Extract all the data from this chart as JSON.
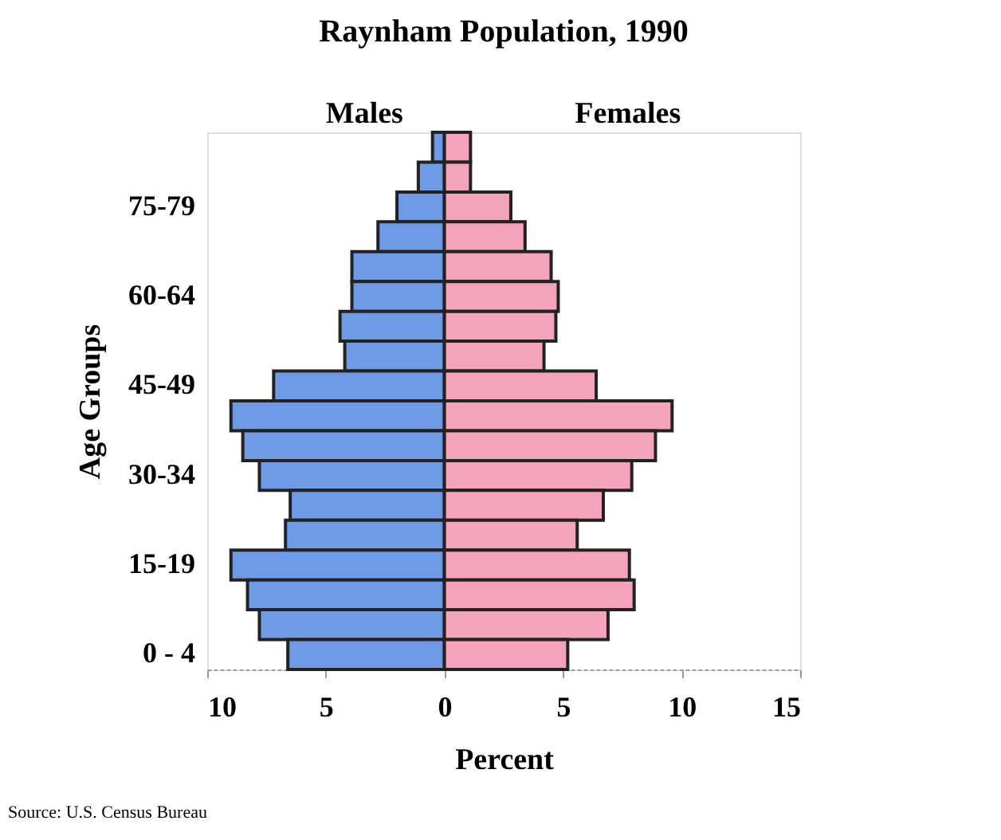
{
  "chart_data": {
    "type": "bar",
    "orientation": "horizontal",
    "stacked": true,
    "title": "Raynham Population, 1990",
    "xlabel": "Percent",
    "ylabel": "Age Groups",
    "categories": [
      null,
      null,
      "75-79",
      null,
      null,
      "60-64",
      null,
      null,
      "45-49",
      null,
      null,
      "30-34",
      null,
      null,
      "15-19",
      null,
      null,
      "0 - 4"
    ],
    "series": [
      {
        "name": "Males",
        "color": "#6f9be6",
        "values": [
          -0.5,
          -1.1,
          -2.0,
          -2.8,
          -3.9,
          -3.9,
          -4.4,
          -4.2,
          -7.2,
          -9.0,
          -8.5,
          -7.8,
          -6.5,
          -6.7,
          -9.0,
          -8.3,
          -7.8,
          -6.6
        ]
      },
      {
        "name": "Females",
        "color": "#f4a3bb",
        "values": [
          1.1,
          1.1,
          2.8,
          3.4,
          4.5,
          4.8,
          4.7,
          4.2,
          6.4,
          9.6,
          8.9,
          7.9,
          6.7,
          5.6,
          7.8,
          8.0,
          6.9,
          5.2
        ]
      }
    ],
    "xlim": [
      -10,
      15
    ],
    "xticks": [
      {
        "value": -10,
        "label": "10"
      },
      {
        "value": -5,
        "label": "5"
      },
      0,
      5,
      10,
      15
    ],
    "annotations": [
      "Source: U.S. Census Bureau"
    ]
  }
}
